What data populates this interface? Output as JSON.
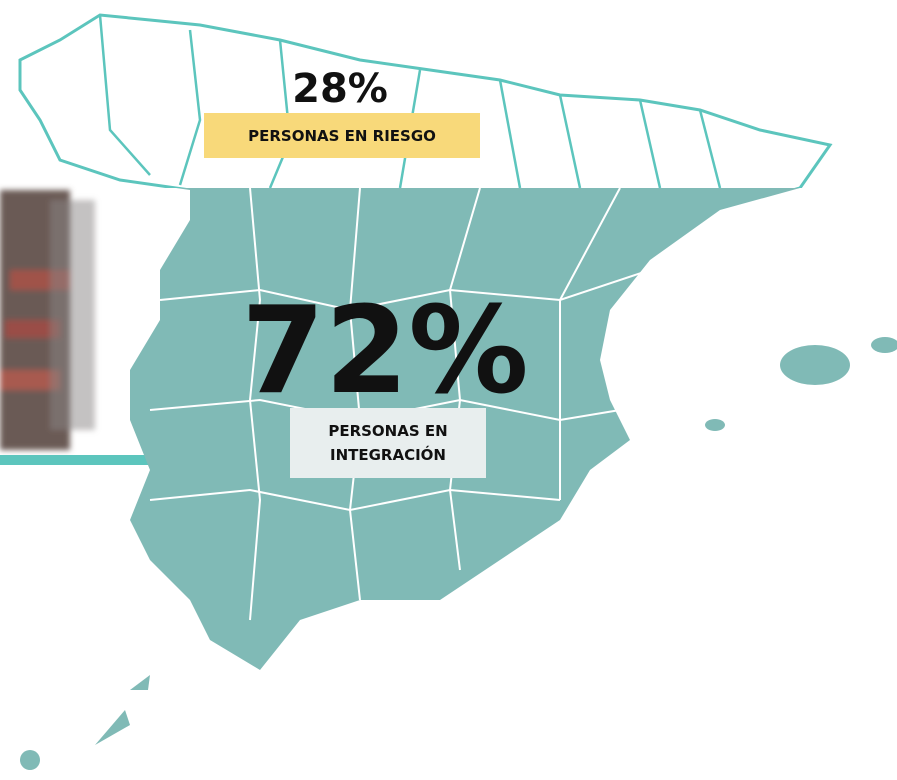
{
  "risk": {
    "value": "28%",
    "label": "PERSONAS EN RIESGO"
  },
  "integration": {
    "value": "72%",
    "label_lines": [
      "PERSONAS EN",
      "INTEGRACIÓN"
    ]
  }
}
